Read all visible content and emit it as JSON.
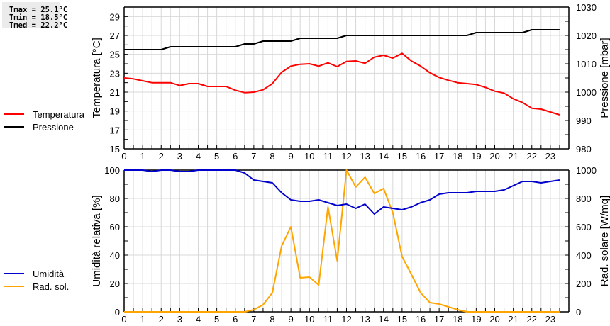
{
  "stats": {
    "tmax": "Tmax = 25.1°C",
    "tmin": "Tmin = 18.5°C",
    "tmed": "Tmed = 22.2°C"
  },
  "legend_top": [
    {
      "label": "Temperatura",
      "color": "#ff0000"
    },
    {
      "label": "Pressione",
      "color": "#000000"
    }
  ],
  "legend_bottom": [
    {
      "label": "Umidità",
      "color": "#0000cc"
    },
    {
      "label": "Rad. sol.",
      "color": "#ffa500"
    }
  ],
  "chart_data": [
    {
      "type": "line",
      "title": "",
      "xlabel": "",
      "ylabel": "Temperatura [°C]",
      "y2label": "Pressione [mbar]",
      "xlim": [
        0,
        24
      ],
      "ylim": [
        15,
        30
      ],
      "y2lim": [
        980,
        1030
      ],
      "xticks": [
        0,
        1,
        2,
        3,
        4,
        5,
        6,
        7,
        8,
        9,
        10,
        11,
        12,
        13,
        14,
        15,
        16,
        17,
        18,
        19,
        20,
        21,
        22,
        23
      ],
      "yticks": [
        15,
        17,
        19,
        21,
        23,
        25,
        27,
        29
      ],
      "y2ticks": [
        980,
        990,
        1000,
        1010,
        1020,
        1030
      ],
      "grid": true,
      "x": [
        0,
        0.5,
        1,
        1.5,
        2,
        2.5,
        3,
        3.5,
        4,
        4.5,
        5,
        5.5,
        6,
        6.5,
        7,
        7.5,
        8,
        8.5,
        9,
        9.5,
        10,
        10.5,
        11,
        11.5,
        12,
        12.5,
        13,
        13.5,
        14,
        14.5,
        15,
        15.5,
        16,
        16.5,
        17,
        17.5,
        18,
        18.5,
        19,
        19.5,
        20,
        20.5,
        21,
        21.5,
        22,
        22.5,
        23,
        23.5
      ],
      "series": [
        {
          "name": "Temperatura",
          "axis": "left",
          "color": "#ff0000",
          "values": [
            22.5,
            22.4,
            22.2,
            22.0,
            22.0,
            22.0,
            21.7,
            21.9,
            21.9,
            21.6,
            21.6,
            21.6,
            21.2,
            20.95,
            21.0,
            21.25,
            21.9,
            23.1,
            23.75,
            23.95,
            24.0,
            23.75,
            24.1,
            23.7,
            24.25,
            24.3,
            24.05,
            24.7,
            24.9,
            24.6,
            25.1,
            24.3,
            23.75,
            23.05,
            22.55,
            22.25,
            22.0,
            21.9,
            21.8,
            21.5,
            21.1,
            20.9,
            20.3,
            19.9,
            19.3,
            19.2,
            18.9,
            18.6
          ]
        },
        {
          "name": "Pressione",
          "axis": "right",
          "color": "#000000",
          "values": [
            1015,
            1015,
            1015,
            1015,
            1015,
            1016,
            1016,
            1016,
            1016,
            1016,
            1016,
            1016,
            1016,
            1017,
            1017,
            1018,
            1018,
            1018,
            1018,
            1019,
            1019,
            1019,
            1019,
            1019,
            1020,
            1020,
            1020,
            1020,
            1020,
            1020,
            1020,
            1020,
            1020,
            1020,
            1020,
            1020,
            1020,
            1020,
            1021,
            1021,
            1021,
            1021,
            1021,
            1021,
            1022,
            1022,
            1022,
            1022
          ]
        }
      ]
    },
    {
      "type": "line",
      "title": "",
      "xlabel": "",
      "ylabel": "Umidità relativa [%]",
      "y2label": "Rad. solare [W/mq]",
      "xlim": [
        0,
        24
      ],
      "ylim": [
        0,
        100
      ],
      "y2lim": [
        0,
        1000
      ],
      "xticks": [
        0,
        1,
        2,
        3,
        4,
        5,
        6,
        7,
        8,
        9,
        10,
        11,
        12,
        13,
        14,
        15,
        16,
        17,
        18,
        19,
        20,
        21,
        22,
        23
      ],
      "yticks": [
        0,
        20,
        40,
        60,
        80,
        100
      ],
      "y2ticks": [
        0,
        200,
        400,
        600,
        800,
        1000
      ],
      "grid": true,
      "x": [
        0,
        0.5,
        1,
        1.5,
        2,
        2.5,
        3,
        3.5,
        4,
        4.5,
        5,
        5.5,
        6,
        6.5,
        7,
        7.5,
        8,
        8.5,
        9,
        9.5,
        10,
        10.5,
        11,
        11.5,
        12,
        12.5,
        13,
        13.5,
        14,
        14.5,
        15,
        15.5,
        16,
        16.5,
        17,
        17.5,
        18,
        18.5,
        19,
        19.5,
        20,
        20.5,
        21,
        21.5,
        22,
        22.5,
        23,
        23.5
      ],
      "series": [
        {
          "name": "Umidità",
          "axis": "left",
          "color": "#0000cc",
          "values": [
            100,
            100,
            100,
            99,
            100,
            100,
            99,
            99,
            100,
            100,
            100,
            100,
            100,
            98,
            93,
            92,
            91,
            84,
            79,
            78,
            78,
            79,
            77,
            75,
            76,
            73,
            76,
            69,
            74,
            73,
            72,
            74,
            77,
            79,
            83,
            84,
            84,
            84,
            85,
            85,
            85,
            86,
            89,
            92,
            92,
            91,
            92,
            93
          ]
        },
        {
          "name": "Rad. sol.",
          "axis": "right",
          "color": "#ffa500",
          "values": [
            0,
            0,
            0,
            0,
            0,
            0,
            0,
            0,
            0,
            0,
            0,
            0,
            0,
            0,
            15,
            50,
            135,
            465,
            600,
            240,
            245,
            190,
            740,
            360,
            1000,
            880,
            950,
            835,
            870,
            700,
            390,
            265,
            135,
            65,
            55,
            35,
            15,
            0,
            0,
            0,
            0,
            0,
            0,
            0,
            0,
            0,
            0,
            0
          ]
        }
      ]
    }
  ]
}
